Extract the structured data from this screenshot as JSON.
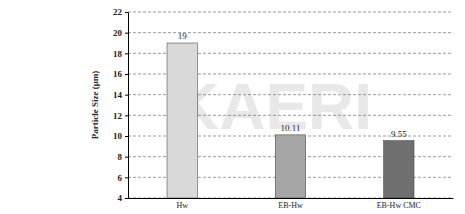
{
  "chart_data": {
    "type": "bar",
    "y_label": "Particle Size (μm)",
    "categories": [
      "Hw",
      "EB-Hw",
      "EB-Hw CMC"
    ],
    "values": [
      19,
      10.11,
      9.55
    ],
    "colors": [
      "#d9d9d9",
      "#a6a6a6",
      "#6f6f6f"
    ],
    "ylim": [
      4,
      22
    ],
    "yticks": [
      4,
      6,
      8,
      10,
      12,
      14,
      16,
      18,
      20,
      22
    ],
    "grid": true,
    "data_labels": true,
    "annotations": [
      "KAERI"
    ]
  }
}
